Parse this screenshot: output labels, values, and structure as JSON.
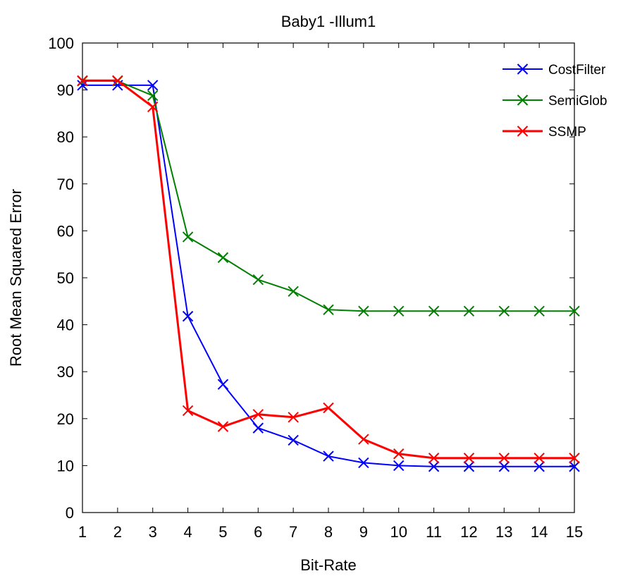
{
  "chart_data": {
    "type": "line",
    "title": "Baby1 -Illum1",
    "xlabel": "Bit-Rate",
    "ylabel": "Root Mean Squared Error",
    "xlim": [
      1,
      15
    ],
    "ylim": [
      0,
      100
    ],
    "xticks": [
      1,
      2,
      3,
      4,
      5,
      6,
      7,
      8,
      9,
      10,
      11,
      12,
      13,
      14,
      15
    ],
    "yticks": [
      0,
      10,
      20,
      30,
      40,
      50,
      60,
      70,
      80,
      90,
      100
    ],
    "grid": false,
    "legend_position": "top-right",
    "marker": "x",
    "x": [
      1,
      2,
      3,
      4,
      5,
      6,
      7,
      8,
      9,
      10,
      11,
      12,
      13,
      14,
      15
    ],
    "series": [
      {
        "name": "CostFilter",
        "color": "#0000ff",
        "values": [
          91.0,
          91.0,
          91.0,
          41.8,
          27.3,
          18.0,
          15.4,
          12.0,
          10.6,
          10.0,
          9.8,
          9.8,
          9.8,
          9.8,
          9.8
        ]
      },
      {
        "name": "SemiGlob",
        "color": "#008000",
        "values": [
          91.9,
          91.9,
          88.8,
          58.7,
          54.3,
          49.6,
          47.1,
          43.2,
          42.9,
          42.9,
          42.9,
          42.9,
          42.9,
          42.9,
          42.9
        ]
      },
      {
        "name": "SSMP",
        "color": "#ff0000",
        "values": [
          92.0,
          92.0,
          86.4,
          21.7,
          18.3,
          20.9,
          20.3,
          22.3,
          15.6,
          12.5,
          11.6,
          11.6,
          11.6,
          11.6,
          11.6
        ]
      }
    ]
  }
}
